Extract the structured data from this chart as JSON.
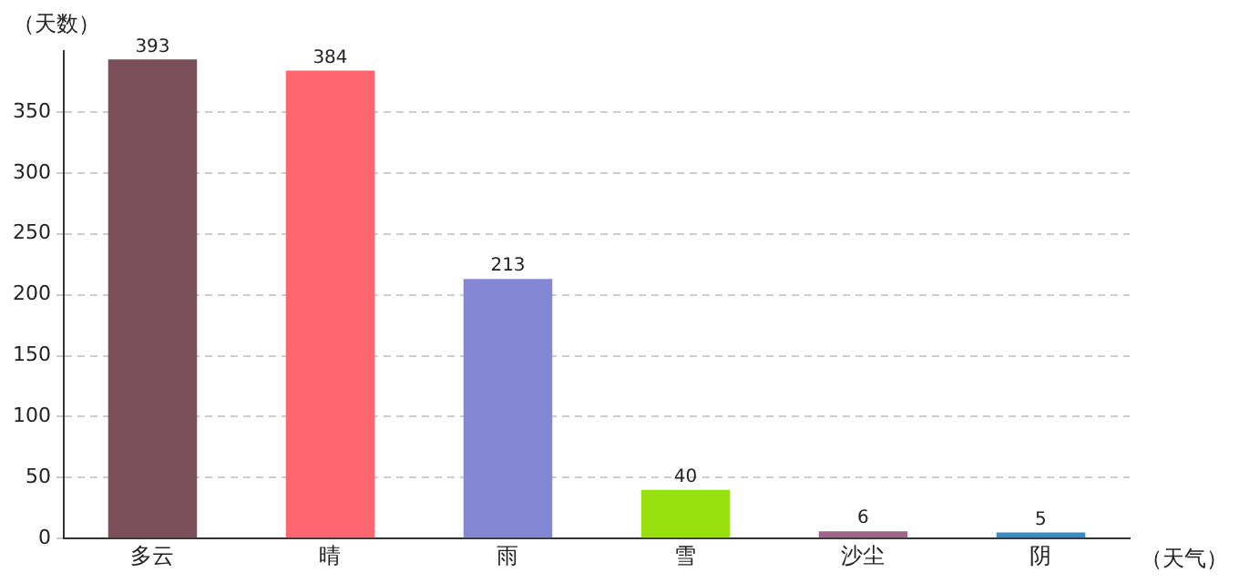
{
  "chart_data": {
    "type": "bar",
    "xlabel": "（天气）",
    "ylabel": "（天数）",
    "categories": [
      "多云",
      "晴",
      "雨",
      "雪",
      "沙尘",
      "阴"
    ],
    "values": [
      393,
      384,
      213,
      40,
      6,
      5
    ],
    "colors": [
      "#7a4f5a",
      "#ff6670",
      "#8487d3",
      "#99e010",
      "#a0668a",
      "#3a8dc4"
    ],
    "ylim": [
      0,
      400
    ],
    "yticks": [
      0,
      50,
      100,
      150,
      200,
      250,
      300,
      350
    ],
    "grid": "y",
    "data_labels": true,
    "legend": false
  }
}
